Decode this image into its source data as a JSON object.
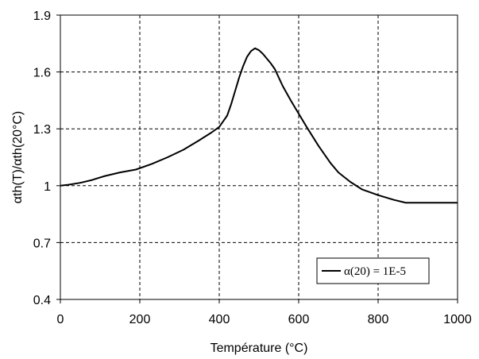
{
  "chart_data": {
    "type": "line",
    "xlabel": "Température (°C)",
    "ylabel": "αth(T)/αth(20°C)",
    "xlim": [
      0,
      1000
    ],
    "ylim": [
      0.4,
      1.9
    ],
    "x_ticks": [
      0,
      200,
      400,
      600,
      800,
      1000
    ],
    "x_tick_labels": [
      "0",
      "200",
      "400",
      "600",
      "800",
      "1000"
    ],
    "y_ticks": [
      0.4,
      0.7,
      1,
      1.3,
      1.6,
      1.9
    ],
    "y_tick_labels": [
      "0.4",
      "0.7",
      "1",
      "1.3",
      "1.6",
      "1.9"
    ],
    "grid": true,
    "legend_position": "bottom-right",
    "series": [
      {
        "name": "α(20) = 1E-5",
        "color": "#000000",
        "x": [
          0,
          20,
          50,
          80,
          110,
          150,
          190,
          230,
          270,
          310,
          350,
          380,
          400,
          410,
          420,
          430,
          440,
          450,
          460,
          470,
          480,
          490,
          500,
          510,
          520,
          530,
          540,
          550,
          560,
          580,
          600,
          620,
          650,
          680,
          700,
          730,
          760,
          800,
          840,
          870,
          900,
          950,
          1000
        ],
        "y": [
          1.0,
          1.005,
          1.015,
          1.03,
          1.05,
          1.07,
          1.085,
          1.115,
          1.15,
          1.19,
          1.24,
          1.28,
          1.31,
          1.34,
          1.37,
          1.43,
          1.5,
          1.57,
          1.63,
          1.68,
          1.71,
          1.725,
          1.715,
          1.695,
          1.67,
          1.645,
          1.615,
          1.57,
          1.525,
          1.45,
          1.38,
          1.31,
          1.21,
          1.12,
          1.07,
          1.02,
          0.98,
          0.95,
          0.925,
          0.91,
          0.91,
          0.91,
          0.91
        ]
      }
    ]
  }
}
